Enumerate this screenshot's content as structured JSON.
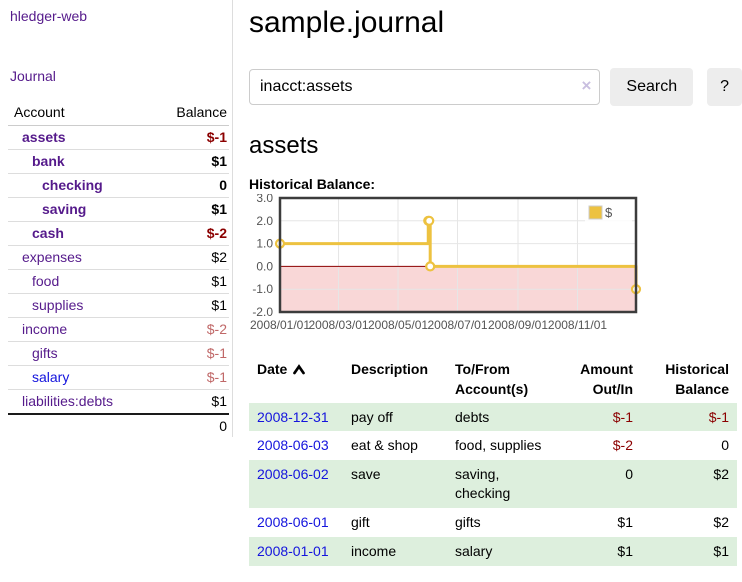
{
  "colors": {
    "link_purple": "#551a8b",
    "link_blue": "#1414dd",
    "negative": "#8b0000",
    "negative_muted": "#c06868",
    "row_shade_green": "#ddefdd",
    "chart_line": "#edc240",
    "chart_negative_region": "#f9d7d7",
    "chart_zero_line": "#8b0000",
    "chart_grid": "#e6e6e6",
    "chart_border": "#3c3c3c",
    "chart_tick_text": "#545454"
  },
  "sidebar": {
    "app_title": "hledger-web",
    "journal_link": "Journal",
    "accounts_header": {
      "account": "Account",
      "balance": "Balance"
    },
    "accounts": [
      {
        "name": "assets",
        "indent": 1,
        "bold": true,
        "balance": "$-1",
        "negative": true,
        "muted": false,
        "link": "purple"
      },
      {
        "name": "bank",
        "indent": 2,
        "bold": true,
        "balance": "$1",
        "negative": false,
        "muted": false,
        "link": "purple"
      },
      {
        "name": "checking",
        "indent": 3,
        "bold": true,
        "balance": "0",
        "negative": false,
        "muted": false,
        "link": "purple"
      },
      {
        "name": "saving",
        "indent": 3,
        "bold": true,
        "balance": "$1",
        "negative": false,
        "muted": false,
        "link": "purple"
      },
      {
        "name": "cash",
        "indent": 2,
        "bold": true,
        "balance": "$-2",
        "negative": true,
        "muted": false,
        "link": "purple"
      },
      {
        "name": "expenses",
        "indent": 1,
        "bold": false,
        "balance": "$2",
        "negative": false,
        "muted": false,
        "link": "purple"
      },
      {
        "name": "food",
        "indent": 2,
        "bold": false,
        "balance": "$1",
        "negative": false,
        "muted": false,
        "link": "purple"
      },
      {
        "name": "supplies",
        "indent": 2,
        "bold": false,
        "balance": "$1",
        "negative": false,
        "muted": false,
        "link": "purple"
      },
      {
        "name": "income",
        "indent": 1,
        "bold": false,
        "balance": "$-2",
        "negative": true,
        "muted": true,
        "link": "purple"
      },
      {
        "name": "gifts",
        "indent": 2,
        "bold": false,
        "balance": "$-1",
        "negative": true,
        "muted": true,
        "link": "purple"
      },
      {
        "name": "salary",
        "indent": 2,
        "bold": false,
        "balance": "$-1",
        "negative": true,
        "muted": true,
        "link": "blue"
      },
      {
        "name": "liabilities:debts",
        "indent": 1,
        "bold": false,
        "balance": "$1",
        "negative": false,
        "muted": false,
        "link": "purple"
      }
    ],
    "total": "0"
  },
  "main": {
    "title": "sample.journal",
    "search": {
      "value": "inacct:assets",
      "clear_icon": "×",
      "button": "Search",
      "help_button": "?"
    },
    "account_heading": "assets",
    "chart_title": "Historical Balance:"
  },
  "chart_data": {
    "type": "line",
    "step": true,
    "title": "Historical Balance",
    "ylim": [
      -2,
      3
    ],
    "y_tick_values": [
      3,
      2,
      1,
      0,
      -1,
      -2
    ],
    "y_tick_labels": [
      "3.0",
      "2.0",
      "1.0",
      "0.0",
      "-1.0",
      "-2.0"
    ],
    "x_range_days": [
      0,
      365
    ],
    "x_tick_days": [
      0,
      60,
      121,
      182,
      244,
      305
    ],
    "x_tick_labels": [
      "2008/01/01",
      "2008/03/01",
      "2008/05/01",
      "2008/07/01",
      "2008/09/01",
      "2008/11/01"
    ],
    "series": [
      {
        "name": "$",
        "color": "#edc240",
        "dates": [
          "2008-01-01",
          "2008-06-01",
          "2008-06-02",
          "2008-06-03",
          "2008-12-31"
        ],
        "x_days": [
          0,
          152,
          153,
          154,
          365
        ],
        "y": [
          1,
          2,
          2,
          0,
          -1
        ]
      }
    ],
    "legend": {
      "label": "$",
      "position": "top-right"
    },
    "grid": true,
    "negative_region": true
  },
  "register": {
    "headers": [
      [
        "Date",
        ""
      ],
      [
        "Description",
        ""
      ],
      [
        "To/From",
        "Account(s)"
      ],
      [
        "Amount",
        "Out/In"
      ],
      [
        "Historical",
        "Balance"
      ]
    ],
    "rows": [
      {
        "date": "2008-12-31",
        "description": "pay off",
        "accounts": "debts",
        "amount": "$-1",
        "amount_negative": true,
        "balance": "$-1",
        "balance_negative": true,
        "shaded": true
      },
      {
        "date": "2008-06-03",
        "description": "eat & shop",
        "accounts": "food, supplies",
        "amount": "$-2",
        "amount_negative": true,
        "balance": "0",
        "balance_negative": false,
        "shaded": false
      },
      {
        "date": "2008-06-02",
        "description": "save",
        "accounts": "saving, checking",
        "amount": "0",
        "amount_negative": false,
        "balance": "$2",
        "balance_negative": false,
        "shaded": true
      },
      {
        "date": "2008-06-01",
        "description": "gift",
        "accounts": "gifts",
        "amount": "$1",
        "amount_negative": false,
        "balance": "$2",
        "balance_negative": false,
        "shaded": false
      },
      {
        "date": "2008-01-01",
        "description": "income",
        "accounts": "salary",
        "amount": "$1",
        "amount_negative": false,
        "balance": "$1",
        "balance_negative": false,
        "shaded": true
      }
    ]
  }
}
